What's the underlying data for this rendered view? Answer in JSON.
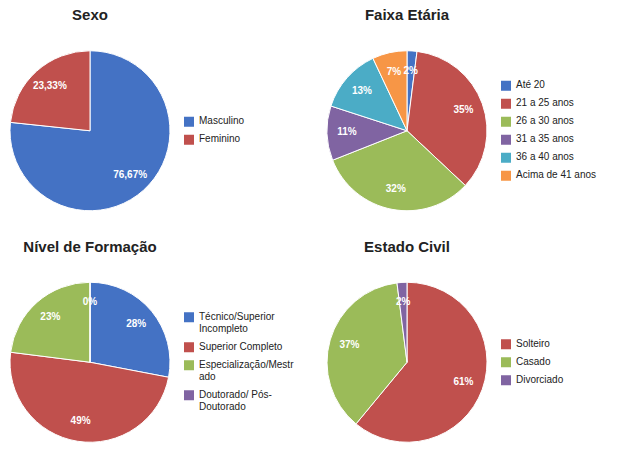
{
  "chart_data": [
    {
      "type": "pie",
      "title": "Sexo",
      "categories": [
        "Masculino",
        "Feminino"
      ],
      "values": [
        76.67,
        23.33
      ],
      "value_labels": [
        "76,67%",
        "23,33%"
      ],
      "colors": [
        "#4472C4",
        "#C0504D"
      ],
      "legend": "right",
      "data_labels": true
    },
    {
      "type": "pie",
      "title": "Faixa Etária",
      "categories": [
        "Até 20",
        "21 a 25 anos",
        "26 a 30 anos",
        "31 a 35 anos",
        "36 a 40 anos",
        "Acima de 41 anos"
      ],
      "values": [
        2,
        35,
        32,
        11,
        13,
        7
      ],
      "value_labels": [
        "2%",
        "35%",
        "32%",
        "11%",
        "13%",
        "7%"
      ],
      "colors": [
        "#4472C4",
        "#C0504D",
        "#9BBB59",
        "#8064A2",
        "#4BACC6",
        "#F79646"
      ],
      "legend": "right",
      "data_labels": true
    },
    {
      "type": "pie",
      "title": "Nível de Formação",
      "categories": [
        "Técnico/Superior\nIncompleto",
        "Superior Completo",
        "Especialização/Mestr\nado",
        "Doutorado/ Pós-\nDoutorado"
      ],
      "values": [
        28,
        49,
        23,
        0
      ],
      "value_labels": [
        "28%",
        "49%",
        "23%",
        "0%"
      ],
      "colors": [
        "#4472C4",
        "#C0504D",
        "#9BBB59",
        "#8064A2"
      ],
      "legend": "right",
      "data_labels": true
    },
    {
      "type": "pie",
      "title": "Estado Civil",
      "categories": [
        "Solteiro",
        "Casado",
        "Divorciado"
      ],
      "values": [
        61,
        37,
        2
      ],
      "value_labels": [
        "61%",
        "37%",
        "2%"
      ],
      "colors": [
        "#C0504D",
        "#9BBB59",
        "#8064A2"
      ],
      "legend": "right",
      "data_labels": true
    }
  ]
}
